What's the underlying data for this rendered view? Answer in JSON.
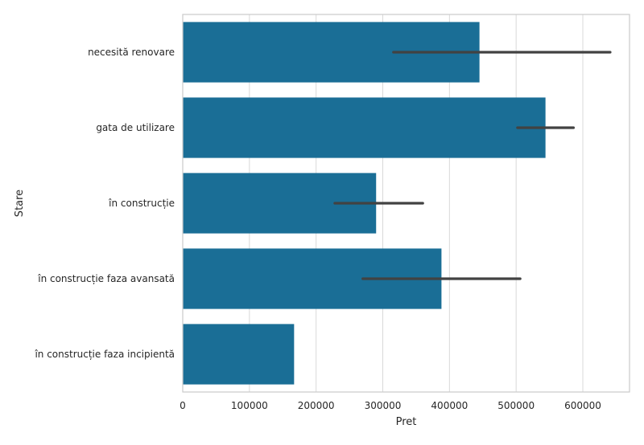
{
  "chart_data": {
    "type": "bar",
    "orientation": "horizontal",
    "xlabel": "Pret",
    "ylabel": "Stare",
    "xlim": [
      0,
      670000
    ],
    "xticks": [
      0,
      100000,
      200000,
      300000,
      400000,
      500000,
      600000
    ],
    "xtick_labels": [
      "0",
      "100000",
      "200000",
      "300000",
      "400000",
      "500000",
      "600000"
    ],
    "grid": true,
    "bar_color": "#1a6e96",
    "errorbar_color": "#424242",
    "categories": [
      "necesită renovare",
      "gata de utilizare",
      "în construcție",
      "în construcție  faza avansată",
      "în construcție  faza incipientă"
    ],
    "values": [
      445000,
      544000,
      290000,
      388000,
      167000
    ],
    "error_low": [
      316000,
      502000,
      228000,
      270000,
      null
    ],
    "error_high": [
      641000,
      586000,
      360000,
      506000,
      null
    ]
  }
}
